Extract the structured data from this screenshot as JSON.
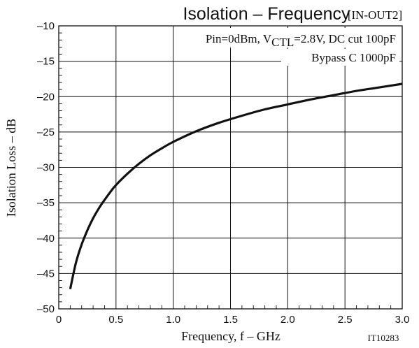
{
  "chart_data": {
    "type": "line",
    "title": "Isolation – Frequency",
    "title_tag": "[IN-OUT2]",
    "xlabel": "Frequency, f – GHz",
    "ylabel": "Isolation Loss – dB",
    "xlim": [
      0,
      3.0
    ],
    "ylim": [
      -50,
      -10
    ],
    "x_ticks": [
      0,
      0.5,
      1.0,
      1.5,
      2.0,
      2.5,
      3.0
    ],
    "x_tick_labels": [
      "0",
      "0.5",
      "1.0",
      "1.5",
      "2.0",
      "2.5",
      "3.0"
    ],
    "y_ticks": [
      -10,
      -15,
      -20,
      -25,
      -30,
      -35,
      -40,
      -45,
      -50
    ],
    "y_tick_labels": [
      "–10",
      "–15",
      "–20",
      "–25",
      "–30",
      "–35",
      "–40",
      "–45",
      "–50"
    ],
    "grid": "major x every 0.5, y every 5; minor x every 0.1, y every 1",
    "annotation_line1": {
      "prefix": "Pin=0dBm, V",
      "subscript": "CTL",
      "suffix": "=2.8V, DC cut 100pF"
    },
    "annotation_line2": "Bypass C 1000pF",
    "code": "IT10283",
    "series": [
      {
        "x": [
          0.1,
          0.15,
          0.2,
          0.25,
          0.3,
          0.35,
          0.4,
          0.45,
          0.5,
          0.6,
          0.7,
          0.8,
          0.9,
          1.0,
          1.2,
          1.4,
          1.6,
          1.8,
          2.0,
          2.2,
          2.4,
          2.6,
          2.8,
          3.0
        ],
        "y": [
          -47.2,
          -43.5,
          -40.9,
          -38.9,
          -37.2,
          -35.8,
          -34.6,
          -33.5,
          -32.5,
          -30.9,
          -29.5,
          -28.3,
          -27.3,
          -26.4,
          -24.9,
          -23.7,
          -22.7,
          -21.8,
          -21.1,
          -20.4,
          -19.8,
          -19.2,
          -18.7,
          -18.2
        ]
      }
    ]
  }
}
